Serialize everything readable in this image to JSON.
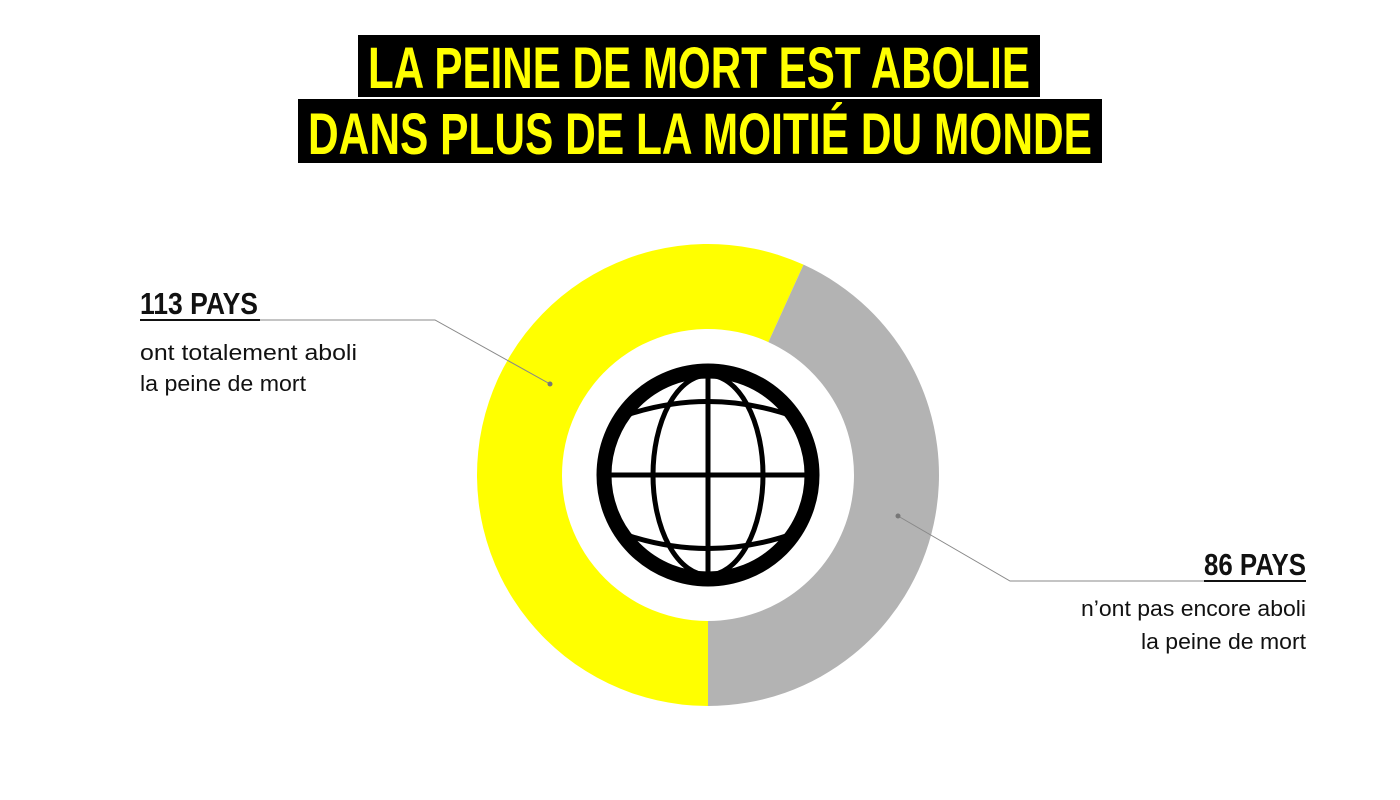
{
  "chart_data": {
    "type": "donut",
    "title": [
      "LA PEINE DE MORT EST ABOLIE",
      "DANS PLUS DE LA MOITIÉ DU MONDE"
    ],
    "values": [
      113,
      86
    ],
    "value_labels": [
      "113 PAYS",
      "86 PAYS"
    ],
    "labels": [
      [
        "ont totalement aboli",
        "la peine de mort"
      ],
      [
        "n’ont pas encore aboli",
        "la peine de mort"
      ]
    ],
    "colors": [
      "#ffff00",
      "#b3b3b3"
    ]
  }
}
